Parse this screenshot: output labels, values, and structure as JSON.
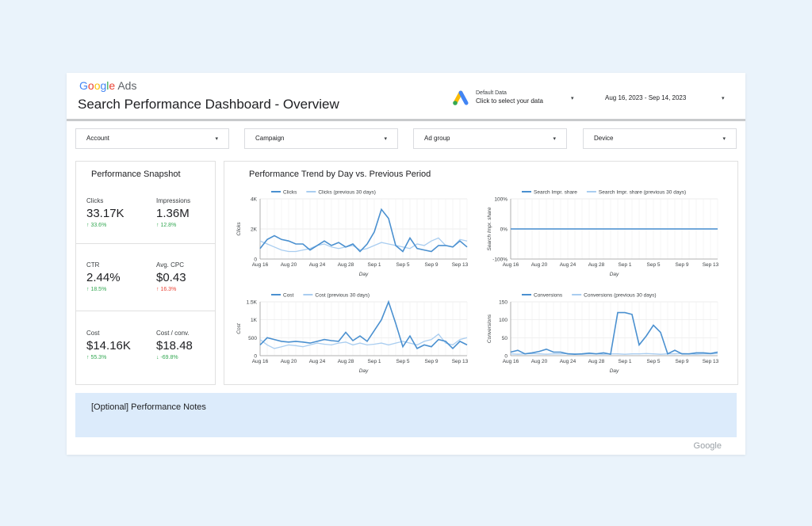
{
  "header": {
    "brand_google": [
      "G",
      "o",
      "o",
      "g",
      "l",
      "e"
    ],
    "brand_ads": "Ads",
    "title": "Search Performance Dashboard - Overview",
    "data_source": {
      "line1": "Default Data",
      "line2": "Click to select your data",
      "caret": "▾"
    },
    "date_range": {
      "value": "Aug 16, 2023 - Sep 14, 2023",
      "caret": "▾"
    }
  },
  "filters": [
    {
      "label": "Account",
      "caret": "▾"
    },
    {
      "label": "Campaign",
      "caret": "▾"
    },
    {
      "label": "Ad group",
      "caret": "▾"
    },
    {
      "label": "Device",
      "caret": "▾"
    }
  ],
  "snapshot": {
    "title": "Performance Snapshot",
    "metrics": [
      {
        "label": "Clicks",
        "value": "33.17K",
        "delta": "↑ 33.6%",
        "dir": "up"
      },
      {
        "label": "Impressions",
        "value": "1.36M",
        "delta": "↑ 12.8%",
        "dir": "up"
      },
      {
        "label": "CTR",
        "value": "2.44%",
        "delta": "↑ 18.5%",
        "dir": "up"
      },
      {
        "label": "Avg. CPC",
        "value": "$0.43",
        "delta": "↑ 16.3%",
        "dir": "down-red"
      },
      {
        "label": "Cost",
        "value": "$14.16K",
        "delta": "↑ 55.3%",
        "dir": "up"
      },
      {
        "label": "Cost / conv.",
        "value": "$18.48",
        "delta": "↓ -69.8%",
        "dir": "up"
      }
    ]
  },
  "trend": {
    "title": "Performance Trend by Day vs. Previous Period"
  },
  "colors": {
    "current": "#4a90d0",
    "previous": "#a9cdf0",
    "grid": "#e6e6e6"
  },
  "chart_data": [
    {
      "type": "line",
      "xlabel": "Day",
      "ylabel": "Clicks",
      "x_ticks": [
        "Aug 16",
        "Aug 20",
        "Aug 24",
        "Aug 28",
        "Sep 1",
        "Sep 5",
        "Sep 9",
        "Sep 13"
      ],
      "y_ticks": [
        "0",
        "2K",
        "4K"
      ],
      "ylim": [
        0,
        4000
      ],
      "series": [
        {
          "name": "Clicks",
          "values": [
            700,
            1300,
            1550,
            1300,
            1200,
            1000,
            1000,
            600,
            900,
            1200,
            900,
            1100,
            800,
            1000,
            500,
            1000,
            1800,
            3300,
            2700,
            900,
            500,
            1400,
            700,
            600,
            500,
            900,
            900,
            800,
            1200,
            800
          ]
        },
        {
          "name": "Clicks (previous 30 days)",
          "values": [
            1200,
            1000,
            800,
            600,
            500,
            500,
            600,
            700,
            900,
            1000,
            800,
            700,
            800,
            900,
            600,
            700,
            900,
            1100,
            1000,
            900,
            800,
            700,
            1000,
            900,
            1200,
            1400,
            900,
            800,
            1300,
            1200
          ]
        }
      ]
    },
    {
      "type": "line",
      "xlabel": "Day",
      "ylabel": "Search Impr. share",
      "x_ticks": [
        "Aug 16",
        "Aug 20",
        "Aug 24",
        "Aug 28",
        "Sep 1",
        "Sep 5",
        "Sep 9",
        "Sep 13"
      ],
      "y_ticks": [
        "-100%",
        "0%",
        "100%"
      ],
      "ylim": [
        -100,
        100
      ],
      "series": [
        {
          "name": "Search Impr. share",
          "values": [
            0,
            0,
            0,
            0,
            0,
            0,
            0,
            0,
            0,
            0,
            0,
            0,
            0,
            0,
            0,
            0,
            0,
            0,
            0,
            0,
            0,
            0,
            0,
            0,
            0,
            0,
            0,
            0,
            0,
            0
          ]
        },
        {
          "name": "Search Impr. share (previous 30 days)",
          "values": [
            0,
            0,
            0,
            0,
            0,
            0,
            0,
            0,
            0,
            0,
            0,
            0,
            0,
            0,
            0,
            0,
            0,
            0,
            0,
            0,
            0,
            0,
            0,
            0,
            0,
            0,
            0,
            0,
            0,
            0
          ]
        }
      ]
    },
    {
      "type": "line",
      "xlabel": "Day",
      "ylabel": "Cost",
      "x_ticks": [
        "Aug 16",
        "Aug 20",
        "Aug 24",
        "Aug 28",
        "Sep 1",
        "Sep 5",
        "Sep 9",
        "Sep 13"
      ],
      "y_ticks": [
        "0",
        "500",
        "1K",
        "1.5K"
      ],
      "ylim": [
        0,
        1500
      ],
      "series": [
        {
          "name": "Cost",
          "values": [
            300,
            500,
            450,
            400,
            380,
            400,
            380,
            350,
            400,
            450,
            420,
            400,
            650,
            420,
            550,
            400,
            700,
            1000,
            1500,
            900,
            250,
            550,
            200,
            300,
            250,
            450,
            400,
            200,
            400,
            300
          ]
        },
        {
          "name": "Cost (previous 30 days)",
          "values": [
            450,
            300,
            200,
            250,
            300,
            280,
            250,
            300,
            350,
            320,
            300,
            350,
            380,
            300,
            350,
            300,
            320,
            350,
            300,
            350,
            400,
            350,
            300,
            400,
            450,
            600,
            350,
            300,
            450,
            500
          ]
        }
      ]
    },
    {
      "type": "line",
      "xlabel": "Day",
      "ylabel": "Conversions",
      "x_ticks": [
        "Aug 16",
        "Aug 20",
        "Aug 24",
        "Aug 28",
        "Sep 1",
        "Sep 5",
        "Sep 9",
        "Sep 13"
      ],
      "y_ticks": [
        "0",
        "50",
        "100",
        "150"
      ],
      "ylim": [
        0,
        150
      ],
      "series": [
        {
          "name": "Conversions",
          "values": [
            10,
            15,
            5,
            8,
            12,
            18,
            10,
            10,
            5,
            4,
            5,
            7,
            5,
            8,
            4,
            120,
            120,
            115,
            30,
            55,
            85,
            65,
            5,
            15,
            5,
            5,
            8,
            8,
            6,
            10
          ]
        },
        {
          "name": "Conversions (previous 30 days)",
          "values": [
            5,
            4,
            5,
            6,
            5,
            4,
            5,
            5,
            6,
            5,
            4,
            5,
            5,
            4,
            5,
            5,
            4,
            5,
            5,
            6,
            5,
            4,
            5,
            5,
            6,
            5,
            4,
            5,
            5,
            6
          ]
        }
      ]
    }
  ],
  "notes": {
    "text": "[Optional] Performance Notes"
  },
  "footer": {
    "google": "Google"
  }
}
